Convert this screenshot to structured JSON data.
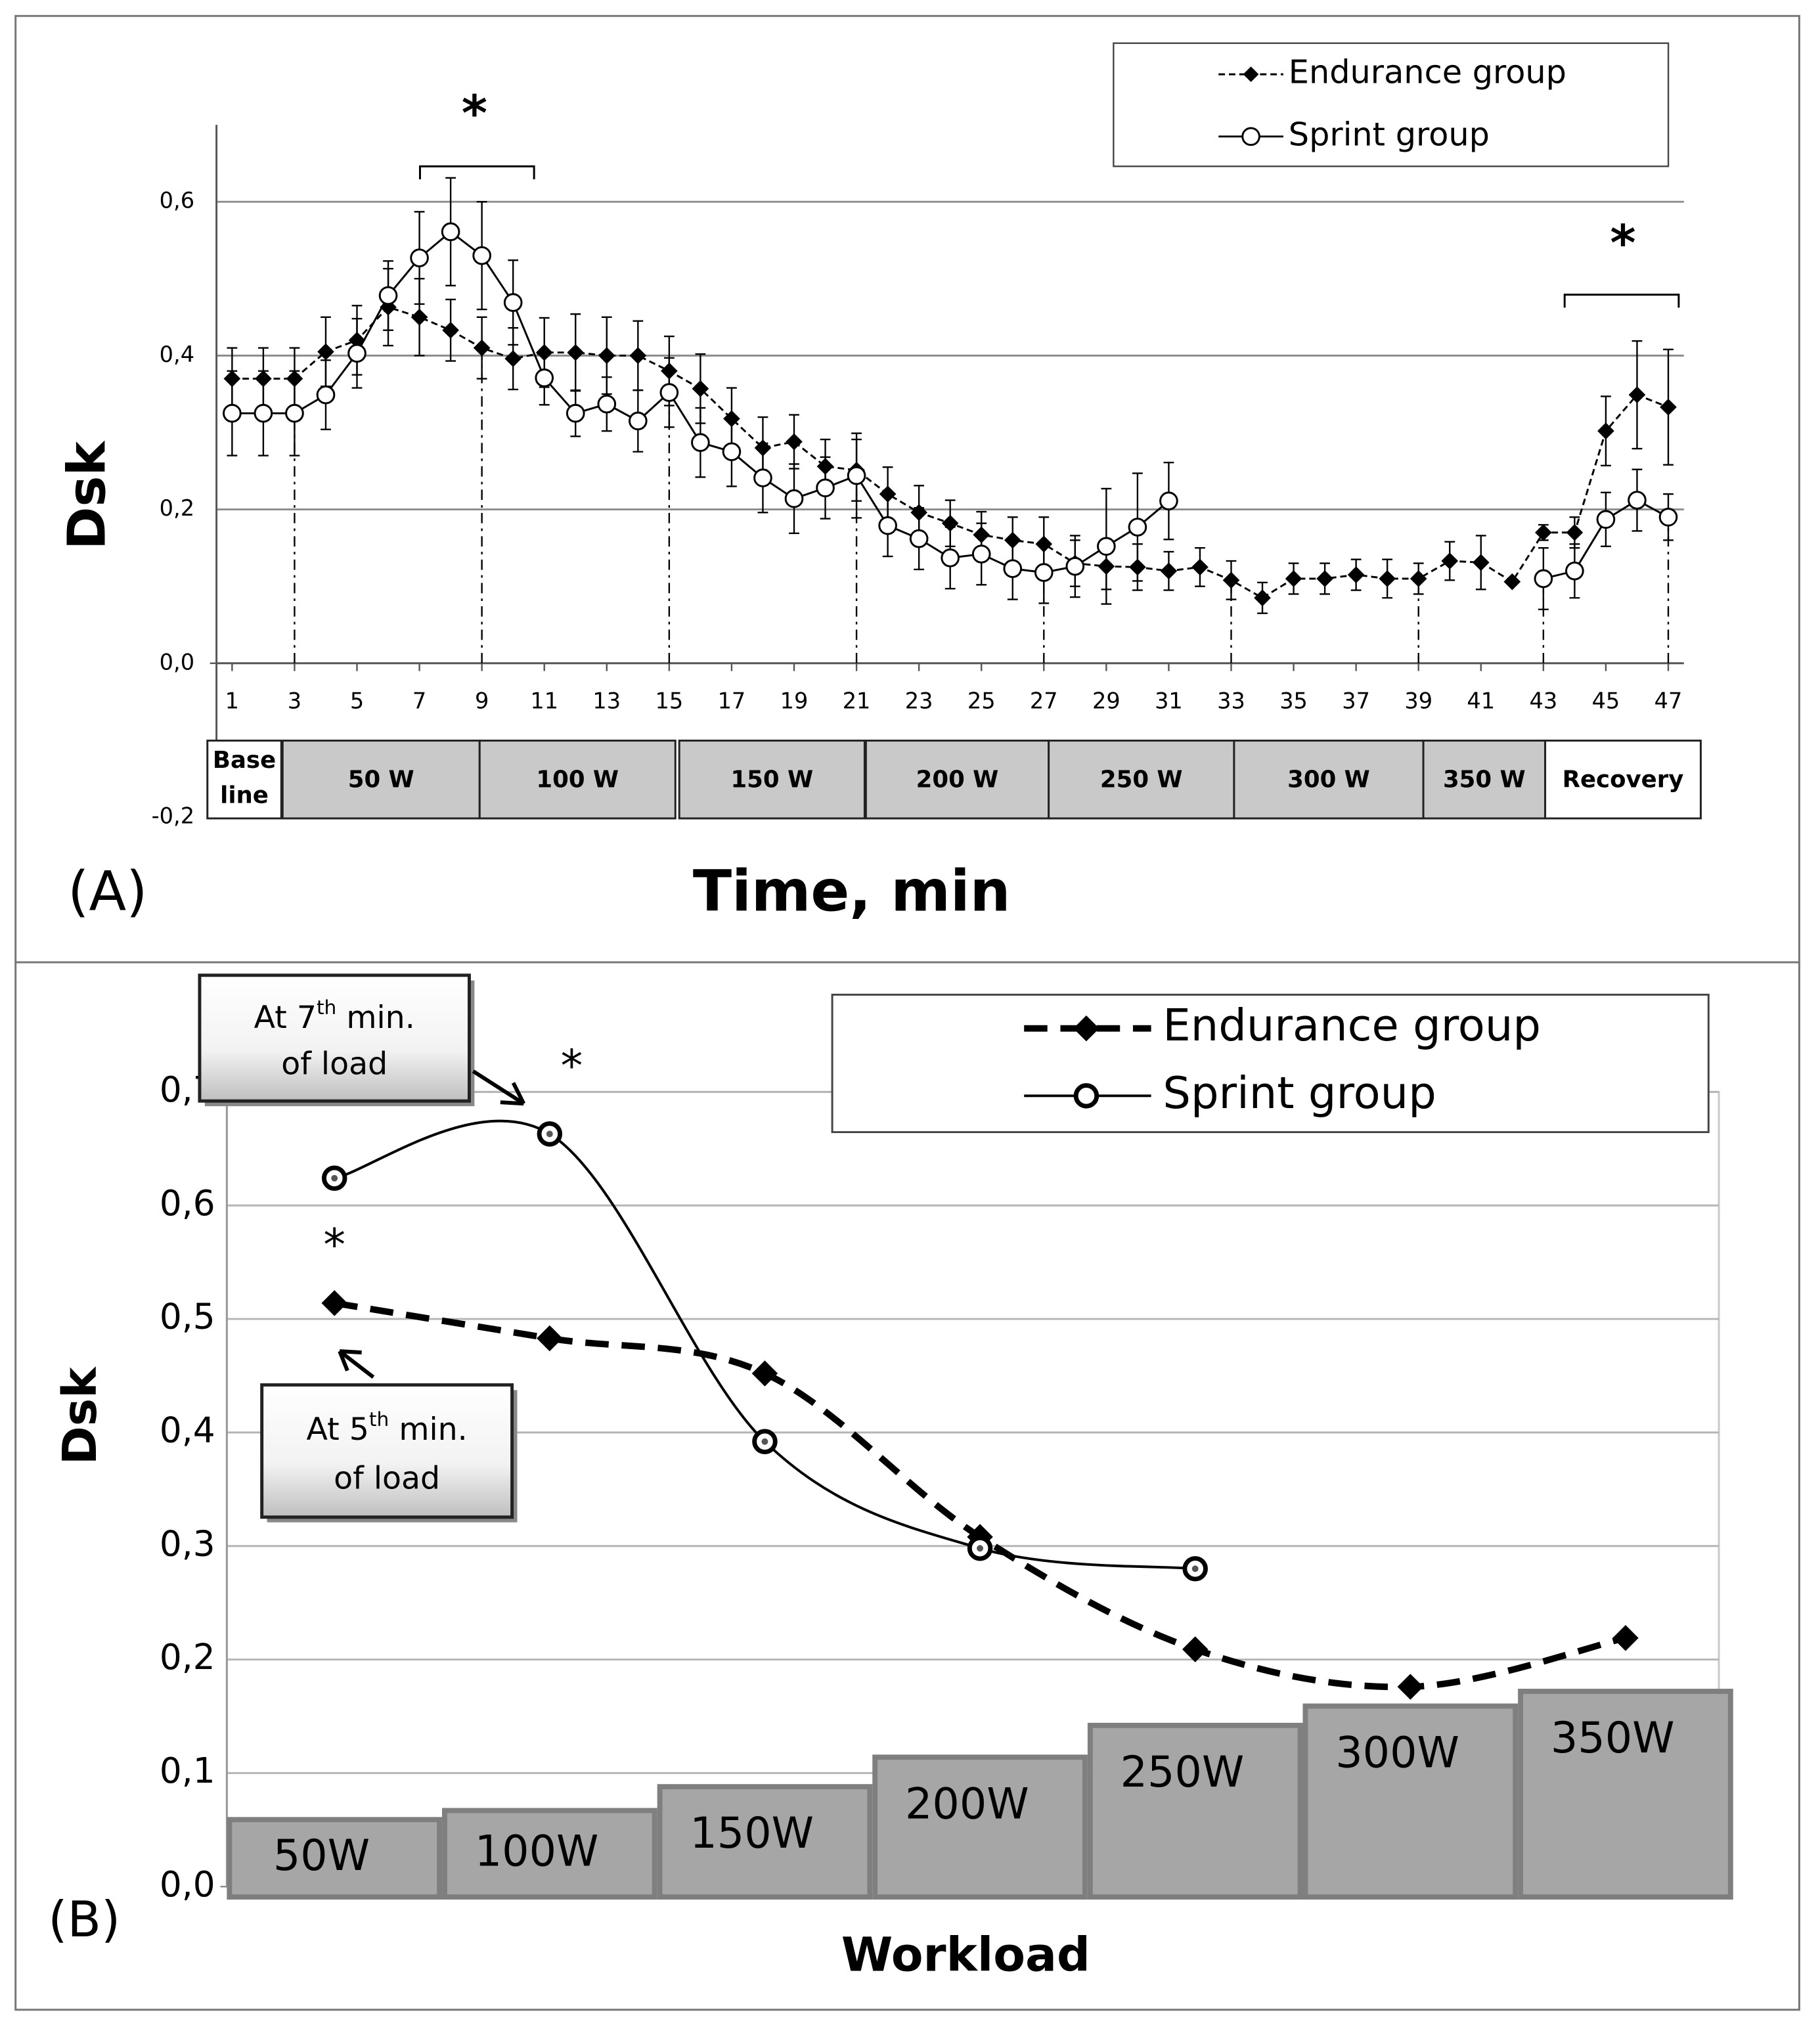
{
  "chart_data": [
    {
      "type": "line",
      "panel_label": "(A)",
      "xlabel": "Time, min",
      "ylabel": "Dsk",
      "x": [
        1,
        2,
        3,
        4,
        5,
        6,
        7,
        8,
        9,
        10,
        11,
        12,
        13,
        14,
        15,
        16,
        17,
        18,
        19,
        20,
        21,
        22,
        23,
        24,
        25,
        26,
        27,
        28,
        29,
        30,
        31,
        32,
        33,
        34,
        35,
        36,
        37,
        38,
        39,
        40,
        41,
        42,
        43,
        44,
        45,
        46,
        47
      ],
      "xlim": [
        0.5,
        47.5
      ],
      "xticks": [
        1,
        3,
        5,
        7,
        9,
        11,
        13,
        15,
        17,
        19,
        21,
        23,
        25,
        27,
        29,
        31,
        33,
        35,
        37,
        39,
        41,
        43,
        45,
        47
      ],
      "ylim": [
        -0.2,
        0.7
      ],
      "yticks": [
        {
          "value": -0.2,
          "label": "-0,2"
        },
        {
          "value": 0,
          "label": "0,0"
        },
        {
          "value": 0.2,
          "label": "0,2"
        },
        {
          "value": 0.4,
          "label": "0,4"
        },
        {
          "value": 0.6,
          "label": "0,6"
        }
      ],
      "grid": true,
      "legend": "upper right",
      "series": [
        {
          "name": "Endurance group",
          "color": "#000000",
          "style": "dashed",
          "marker": "diamond",
          "values": [
            0.37,
            0.37,
            0.37,
            0.405,
            0.42,
            0.463,
            0.45,
            0.433,
            0.41,
            0.396,
            0.404,
            0.404,
            0.4,
            0.4,
            0.38,
            0.357,
            0.318,
            0.28,
            0.288,
            0.256,
            0.251,
            0.22,
            0.196,
            0.182,
            0.167,
            0.16,
            0.155,
            0.13,
            0.126,
            0.125,
            0.12,
            0.125,
            0.108,
            0.085,
            0.11,
            0.11,
            0.115,
            0.11,
            0.11,
            0.133,
            0.131,
            0.106,
            0.17,
            0.17,
            0.302,
            0.349,
            0.333
          ],
          "errors": [
            0.04,
            0.04,
            0.04,
            0.045,
            0.045,
            0.05,
            0.05,
            0.04,
            0.04,
            0.04,
            0.045,
            0.05,
            0.05,
            0.045,
            0.045,
            0.045,
            0.04,
            0.04,
            0.035,
            0.035,
            0.04,
            0.035,
            0.035,
            0.03,
            0.03,
            0.03,
            0.035,
            0.03,
            0.03,
            0.03,
            0.025,
            0.025,
            0.025,
            0.02,
            0.02,
            0.02,
            0.02,
            0.025,
            0.02,
            0.025,
            0.035,
            null,
            0.01,
            0.02,
            0.045,
            0.07,
            0.075
          ]
        },
        {
          "name": "Sprint group",
          "color": "#000000",
          "style": "solid",
          "marker": "open-circle",
          "values": [
            0.325,
            0.325,
            0.325,
            0.349,
            0.403,
            0.478,
            0.527,
            0.561,
            0.53,
            0.469,
            0.371,
            0.325,
            0.337,
            0.315,
            0.352,
            0.287,
            0.275,
            0.241,
            0.214,
            0.228,
            0.244,
            0.179,
            0.162,
            0.137,
            0.142,
            0.123,
            0.118,
            0.126,
            0.152,
            0.177,
            0.211,
            null,
            null,
            null,
            null,
            null,
            null,
            null,
            null,
            null,
            null,
            null,
            0.11,
            0.12,
            0.187,
            0.212,
            0.19
          ],
          "errors": [
            0.055,
            0.055,
            0.055,
            0.045,
            0.045,
            0.045,
            0.06,
            0.07,
            0.07,
            0.055,
            0.035,
            0.03,
            0.035,
            0.04,
            0.045,
            0.045,
            0.045,
            0.045,
            0.045,
            0.04,
            0.055,
            0.04,
            0.04,
            0.04,
            0.04,
            0.04,
            0.04,
            0.04,
            0.075,
            0.07,
            0.05,
            null,
            null,
            null,
            null,
            null,
            null,
            null,
            null,
            null,
            null,
            null,
            0.04,
            0.035,
            0.035,
            0.04,
            0.03
          ]
        }
      ],
      "stage_lines_x": [
        3,
        9,
        15,
        21,
        27,
        33,
        39,
        43,
        47
      ],
      "stages": [
        [
          "Base",
          "line"
        ],
        "50 W",
        "100 W",
        "150 W",
        "200 W",
        "250 W",
        "300 W",
        "350 W",
        "Recovery"
      ],
      "annotations": [
        "*",
        "*"
      ]
    },
    {
      "type": "line",
      "smooth": true,
      "panel_label": "(B)",
      "xlabel": "Workload",
      "ylabel": "Dsk",
      "categories": [
        "50W",
        "100W",
        "150W",
        "200W",
        "250W",
        "300W",
        "350W"
      ],
      "workload_bars": [
        0.059,
        0.067,
        0.088,
        0.114,
        0.142,
        0.159,
        0.172
      ],
      "ylim": [
        0,
        0.7
      ],
      "yticks": [
        {
          "value": 0,
          "label": "0,0"
        },
        {
          "value": 0.1,
          "label": "0,1"
        },
        {
          "value": 0.2,
          "label": "0,2"
        },
        {
          "value": 0.3,
          "label": "0,3"
        },
        {
          "value": 0.4,
          "label": "0,4"
        },
        {
          "value": 0.5,
          "label": "0,5"
        },
        {
          "value": 0.6,
          "label": "0,6"
        },
        {
          "value": 0.7,
          "label": "0,7"
        }
      ],
      "grid": true,
      "legend": "upper right",
      "series": [
        {
          "name": "Endurance group",
          "color": "#000000",
          "style": "dashed",
          "marker": "diamond",
          "values": [
            0.514,
            0.483,
            0.452,
            0.308,
            0.209,
            0.176,
            0.219
          ]
        },
        {
          "name": "Sprint group",
          "color": "#000000",
          "style": "solid",
          "marker": "ring",
          "values": [
            0.624,
            0.663,
            0.392,
            0.298,
            0.28,
            null,
            null
          ]
        }
      ],
      "callouts": [
        [
          "At 7",
          "th",
          " min.",
          "of load"
        ],
        [
          "At 5",
          "th",
          " min.",
          "of load"
        ]
      ],
      "annotations": [
        "*",
        "*"
      ]
    }
  ]
}
